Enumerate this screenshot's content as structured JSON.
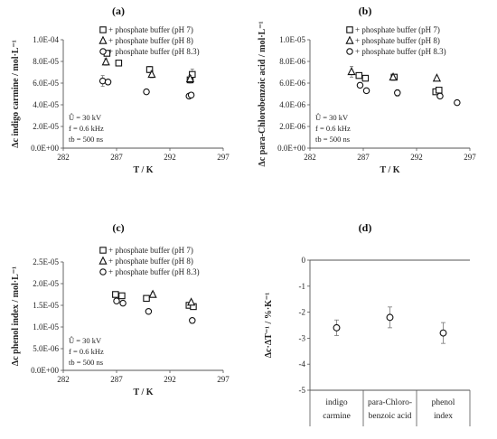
{
  "chart_data": [
    {
      "type": "scatter",
      "panel_label": "(a)",
      "xlabel": "T / K",
      "ylabel": "Δc indigo carmine / mol·L⁻¹",
      "xlim": [
        282,
        297
      ],
      "ylim": [
        0,
        0.0001
      ],
      "xticks": [
        "282",
        "287",
        "292",
        "297"
      ],
      "yticks": [
        "0.0E+00",
        "2.0E-05",
        "4.0E-05",
        "6.0E-05",
        "8.0E-05",
        "1.0E-04"
      ],
      "annotation": [
        "Û = 30 kV",
        "f = 0.6 kHz",
        "tb = 500 ns"
      ],
      "series": [
        {
          "name": "+ phosphate buffer (pH 7)",
          "marker": "square",
          "x": [
            286.1,
            287.2,
            290.1,
            293.9,
            294.1
          ],
          "y": [
            8.75e-05,
            7.85e-05,
            7.25e-05,
            6.3e-05,
            6.8e-05
          ],
          "err": [
            2e-06,
            2e-06,
            3e-06,
            3e-06,
            5e-06
          ]
        },
        {
          "name": "+ phosphate buffer (pH 8)",
          "marker": "triangle",
          "x": [
            286.0,
            290.3,
            293.9
          ],
          "y": [
            7.95e-05,
            6.8e-05,
            6.4e-05
          ],
          "err": [
            3e-06,
            3e-06,
            3e-06
          ]
        },
        {
          "name": "+ phosphate buffer (pH 8.3)",
          "marker": "circle",
          "x": [
            285.7,
            286.2,
            289.8,
            293.8,
            294.0
          ],
          "y": [
            6.2e-05,
            6.1e-05,
            5.2e-05,
            4.8e-05,
            4.9e-05
          ],
          "err": [
            5e-06,
            2e-06,
            2e-06,
            2e-06,
            2e-06
          ]
        }
      ]
    },
    {
      "type": "scatter",
      "panel_label": "(b)",
      "xlabel": "T / K",
      "ylabel": "Δc para-Chlorobenzoic acid / mol·L⁻¹",
      "xlim": [
        282,
        297
      ],
      "ylim": [
        0,
        1e-05
      ],
      "xticks": [
        "282",
        "287",
        "292",
        "297"
      ],
      "yticks": [
        "0.0E+00",
        "2.0E-06",
        "4.0E-06",
        "6.0E-06",
        "8.0E-06",
        "1.0E-05"
      ],
      "annotation": [
        "Û = 30 kV",
        "f = 0.6 kHz",
        "tb = 500 ns"
      ],
      "series": [
        {
          "name": "+ phosphate buffer (pH 7)",
          "marker": "square",
          "x": [
            286.6,
            287.2,
            289.9,
            293.8,
            294.1
          ],
          "y": [
            6.7e-06,
            6.45e-06,
            6.55e-06,
            5.2e-06,
            5.35e-06
          ],
          "err": [
            2e-07,
            2e-07,
            2e-07,
            2e-07,
            2e-07
          ]
        },
        {
          "name": "+ phosphate buffer (pH 8)",
          "marker": "triangle",
          "x": [
            285.9,
            289.8,
            293.9
          ],
          "y": [
            7.05e-06,
            6.55e-06,
            6.45e-06
          ],
          "err": [
            5e-07,
            3e-07,
            1e-07
          ]
        },
        {
          "name": "+ phosphate buffer (pH 8.3)",
          "marker": "circle",
          "x": [
            286.7,
            287.3,
            290.2,
            294.2,
            295.8
          ],
          "y": [
            5.8e-06,
            5.3e-06,
            5.1e-06,
            4.8e-06,
            4.2e-06
          ],
          "err": [
            2e-07,
            2e-07,
            3e-07,
            2e-07,
            1e-07
          ]
        }
      ]
    },
    {
      "type": "scatter",
      "panel_label": "(c)",
      "xlabel": "T / K",
      "ylabel": "Δc phenol index / mol·L⁻¹",
      "xlim": [
        282,
        297
      ],
      "ylim": [
        0,
        2.5e-05
      ],
      "xticks": [
        "282",
        "287",
        "292",
        "297"
      ],
      "yticks": [
        "0.0E+00",
        "5.0E-06",
        "1.0E-05",
        "1.5E-05",
        "2.0E-05",
        "2.5E-05"
      ],
      "annotation": [
        "Û = 30 kV",
        "f = 0.6 kHz",
        "tb = 500 ns"
      ],
      "series": [
        {
          "name": "+ phosphate buffer (pH 7)",
          "marker": "square",
          "x": [
            286.9,
            287.5,
            289.8,
            293.8,
            294.2
          ],
          "y": [
            1.75e-05,
            1.72e-05,
            1.66e-05,
            1.5e-05,
            1.47e-05
          ],
          "err": [
            3e-07,
            3e-07,
            3e-07,
            3e-07,
            3e-07
          ]
        },
        {
          "name": "+ phosphate buffer (pH 8)",
          "marker": "triangle",
          "x": [
            290.4,
            294.0
          ],
          "y": [
            1.75e-05,
            1.57e-05
          ],
          "err": [
            5e-07,
            4e-07
          ]
        },
        {
          "name": "+ phosphate buffer (pH 8.3)",
          "marker": "circle",
          "x": [
            287.0,
            287.6,
            290.0,
            294.1
          ],
          "y": [
            1.6e-05,
            1.55e-05,
            1.36e-05,
            1.15e-05
          ],
          "err": [
            3e-07,
            3e-07,
            3e-07,
            5e-07
          ]
        }
      ]
    },
    {
      "type": "scatter",
      "panel_label": "(d)",
      "ylabel": "Δc·ΔT⁻¹ / %·K⁻¹",
      "ylim": [
        -5,
        0
      ],
      "yticks": [
        "-5",
        "-4",
        "-3",
        "-2",
        "-1",
        "0"
      ],
      "categories": [
        [
          "indigo",
          "carmine"
        ],
        [
          "para-Chloro-",
          "benzoic acid"
        ],
        [
          "phenol",
          "index"
        ]
      ],
      "values": [
        -2.6,
        -2.2,
        -2.8
      ],
      "err": [
        0.3,
        0.4,
        0.4
      ]
    }
  ]
}
